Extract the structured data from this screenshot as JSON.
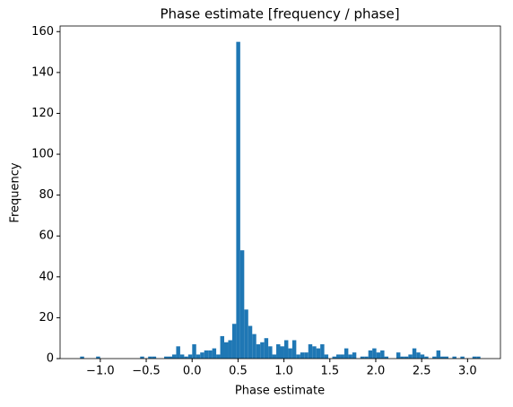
{
  "chart_data": {
    "type": "histogram",
    "title": "Phase estimate [frequency / phase]",
    "x_label": "Phase estimate",
    "y_label": "Frequency",
    "color": "#1f77b4",
    "bins": [
      -1.22,
      -1.1764,
      -1.1328,
      -1.0892,
      -1.0456,
      -1.002,
      -0.9584,
      -0.9148,
      -0.8712,
      -0.8276,
      -0.784,
      -0.7404,
      -0.6968,
      -0.6532,
      -0.6096,
      -0.566,
      -0.5224,
      -0.4788,
      -0.4352,
      -0.3916,
      -0.348,
      -0.3044,
      -0.2608,
      -0.2172,
      -0.1736,
      -0.13,
      -0.0864,
      -0.0428,
      0.0008,
      0.0444,
      0.088,
      0.1316,
      0.1752,
      0.2188,
      0.2624,
      0.306,
      0.3496,
      0.3932,
      0.4368,
      0.4804,
      0.524,
      0.5676,
      0.6112,
      0.6548,
      0.6984,
      0.742,
      0.7856,
      0.8292,
      0.8728,
      0.9164,
      0.96,
      1.0036,
      1.0472,
      1.0908,
      1.1344,
      1.178,
      1.2216,
      1.2652,
      1.3088,
      1.3524,
      1.396,
      1.4396,
      1.4832,
      1.5268,
      1.5704,
      1.614,
      1.6576,
      1.7012,
      1.7448,
      1.7884,
      1.832,
      1.8756,
      1.9192,
      1.9628,
      2.0064,
      2.05,
      2.0936,
      2.1372,
      2.1808,
      2.2244,
      2.268,
      2.3116,
      2.3552,
      2.3988,
      2.4424,
      2.486,
      2.5296,
      2.5732,
      2.6168,
      2.6604,
      2.704,
      2.7476,
      2.7912,
      2.8348,
      2.8784,
      2.922,
      2.9656,
      3.0092,
      3.0528,
      3.0964,
      3.14
    ],
    "values": [
      1,
      0,
      0,
      0,
      1,
      0,
      0,
      0,
      0,
      0,
      0,
      0,
      0,
      0,
      0,
      1,
      0,
      1,
      1,
      0,
      0,
      1,
      1,
      2,
      6,
      2,
      1,
      2,
      7,
      2,
      3,
      4,
      4,
      5,
      2,
      11,
      8,
      9,
      17,
      155,
      53,
      24,
      16,
      12,
      7,
      8,
      10,
      6,
      2,
      7,
      6,
      9,
      5,
      9,
      2,
      3,
      3,
      7,
      6,
      5,
      7,
      2,
      0,
      1,
      2,
      2,
      5,
      2,
      3,
      0,
      1,
      1,
      4,
      5,
      3,
      4,
      1,
      0,
      0,
      3,
      1,
      1,
      2,
      5,
      3,
      2,
      1,
      0,
      1,
      4,
      1,
      1,
      0,
      1,
      0,
      1,
      0,
      0,
      1,
      1
    ],
    "xlim": [
      -1.438,
      3.358
    ],
    "xticks": [
      {
        "value": -1,
        "label": "−1.0"
      },
      {
        "value": -0.5,
        "label": "−0.5"
      },
      {
        "value": 0,
        "label": "0.0"
      },
      {
        "value": 0.5,
        "label": "0.5"
      },
      {
        "value": 1,
        "label": "1.0"
      },
      {
        "value": 1.5,
        "label": "1.5"
      },
      {
        "value": 2,
        "label": "2.0"
      },
      {
        "value": 2.5,
        "label": "2.5"
      },
      {
        "value": 3,
        "label": "3.0"
      }
    ],
    "ylim": [
      0,
      162.75
    ],
    "yticks": [
      0,
      20,
      40,
      60,
      80,
      100,
      120,
      140,
      160
    ]
  }
}
